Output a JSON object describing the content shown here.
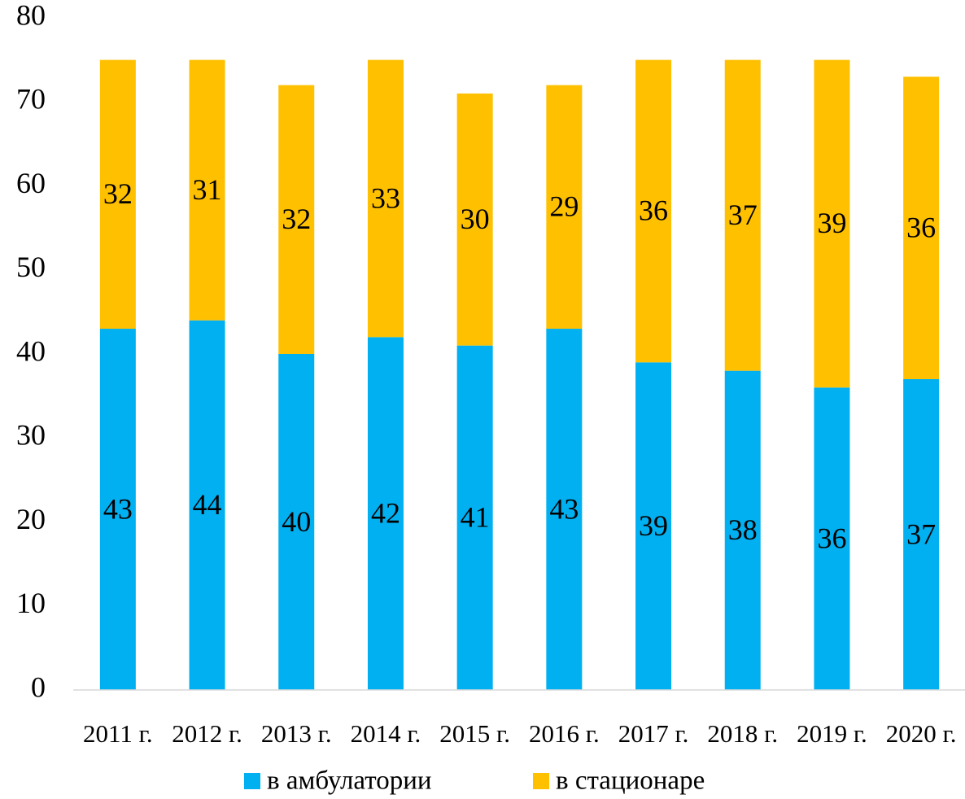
{
  "chart_data": {
    "type": "stacked_bar",
    "categories": [
      "2011 г.",
      "2012 г.",
      "2013 г.",
      "2014 г.",
      "2015 г.",
      "2016 г.",
      "2017 г.",
      "2018 г.",
      "2019 г.",
      "2020 г."
    ],
    "series": [
      {
        "name": "в амбулатории",
        "color": "#00b0f0",
        "values": [
          43,
          44,
          40,
          42,
          41,
          43,
          39,
          38,
          36,
          37
        ]
      },
      {
        "name": "в стационаре",
        "color": "#ffc000",
        "values": [
          32,
          31,
          32,
          33,
          30,
          29,
          36,
          37,
          39,
          36
        ]
      }
    ],
    "ylim": [
      0,
      80
    ],
    "yticks": [
      0,
      10,
      20,
      30,
      40,
      50,
      60,
      70,
      80
    ],
    "grid": false,
    "legend": "bottom"
  }
}
